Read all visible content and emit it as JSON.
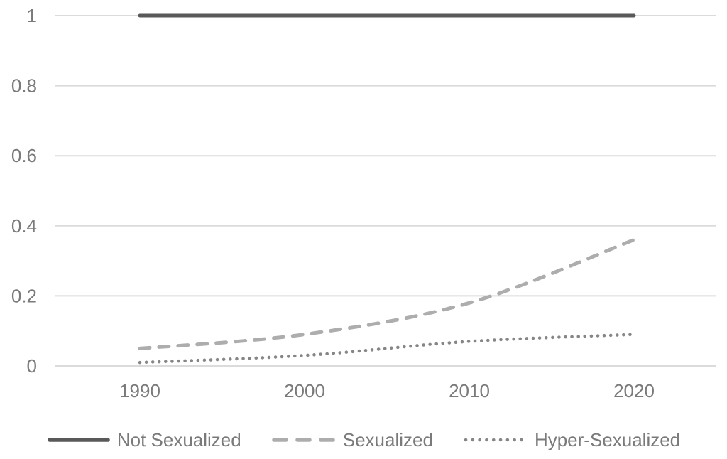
{
  "chart_data": {
    "type": "line",
    "title": "",
    "xlabel": "",
    "ylabel": "",
    "x": [
      1990,
      2000,
      2010,
      2020
    ],
    "x_tick_labels": [
      "1990",
      "2000",
      "2010",
      "2020"
    ],
    "y_ticks": [
      0,
      0.2,
      0.4,
      0.6,
      0.8,
      1
    ],
    "y_tick_labels": [
      "0",
      "0.2",
      "0.4",
      "0.6",
      "0.8",
      "1"
    ],
    "ylim": [
      0,
      1
    ],
    "grid": "horizontal",
    "smoothed": true,
    "legend_position": "bottom",
    "series": [
      {
        "name": "Not Sexualized",
        "values": [
          1.0,
          1.0,
          1.0,
          1.0
        ],
        "line_style": "solid",
        "color": "#595959"
      },
      {
        "name": "Sexualized",
        "values": [
          0.05,
          0.09,
          0.18,
          0.36
        ],
        "line_style": "dashed",
        "color": "#adadad"
      },
      {
        "name": "Hyper-Sexualized",
        "values": [
          0.01,
          0.03,
          0.07,
          0.09
        ],
        "line_style": "dotted",
        "color": "#868686"
      }
    ],
    "colors": {
      "gridline": "#dbdbdb",
      "tick_label": "#7a7a7a",
      "legend_label": "#7a7a7a",
      "background": "#ffffff"
    }
  }
}
